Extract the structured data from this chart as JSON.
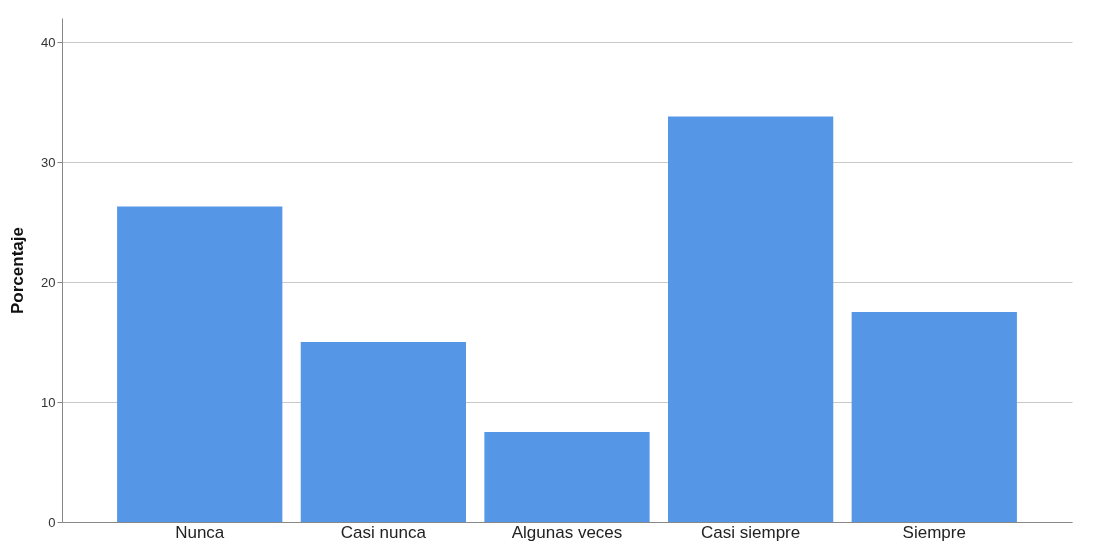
{
  "chart_data": {
    "type": "bar",
    "ylabel": "Porcentaje",
    "categories": [
      "Nunca",
      "Casi nunca",
      "Algunas veces",
      "Casi siempre",
      "Siempre"
    ],
    "values": [
      26.3,
      15.0,
      7.5,
      33.8,
      17.5
    ],
    "color": "#5596e6",
    "ylim": [
      0,
      42
    ],
    "yticks": [
      0,
      10,
      20,
      30,
      40
    ],
    "grid": "y"
  }
}
